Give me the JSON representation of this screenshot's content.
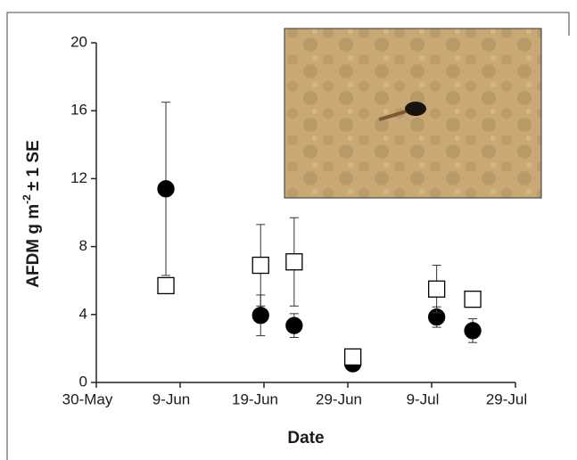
{
  "chart_data": {
    "type": "scatter",
    "xlabel": "Date",
    "ylabel": "AFDM g m",
    "ylabel_sup": "-2",
    "ylabel_end": "± 1 SE",
    "xlim": [
      0,
      50
    ],
    "ylim": [
      0,
      20
    ],
    "xticks": [
      {
        "value": 0,
        "label": "30-May"
      },
      {
        "value": 10,
        "label": "9-Jun"
      },
      {
        "value": 20,
        "label": "19-Jun"
      },
      {
        "value": 30,
        "label": "29-Jun"
      },
      {
        "value": 40,
        "label": "9-Jul"
      },
      {
        "value": 50,
        "label": "29-Jul"
      }
    ],
    "yticks": [
      0,
      4,
      8,
      12,
      16,
      20
    ],
    "series": [
      {
        "marker": "circle",
        "color": "#000000",
        "x": [
          8.3,
          19.6,
          23.6,
          30.6,
          40.6,
          44.9
        ],
        "values": [
          11.4,
          3.95,
          3.35,
          1.1,
          3.85,
          3.05
        ],
        "errors": [
          5.1,
          1.2,
          0.7,
          0.2,
          0.6,
          0.7
        ]
      },
      {
        "marker": "square",
        "color": "#ffffff",
        "x": [
          8.3,
          19.6,
          23.6,
          30.6,
          40.6,
          44.9
        ],
        "values": [
          5.7,
          6.9,
          7.1,
          1.5,
          5.5,
          4.9
        ],
        "errors": [
          null,
          2.4,
          2.6,
          null,
          1.4,
          null
        ]
      }
    ]
  }
}
